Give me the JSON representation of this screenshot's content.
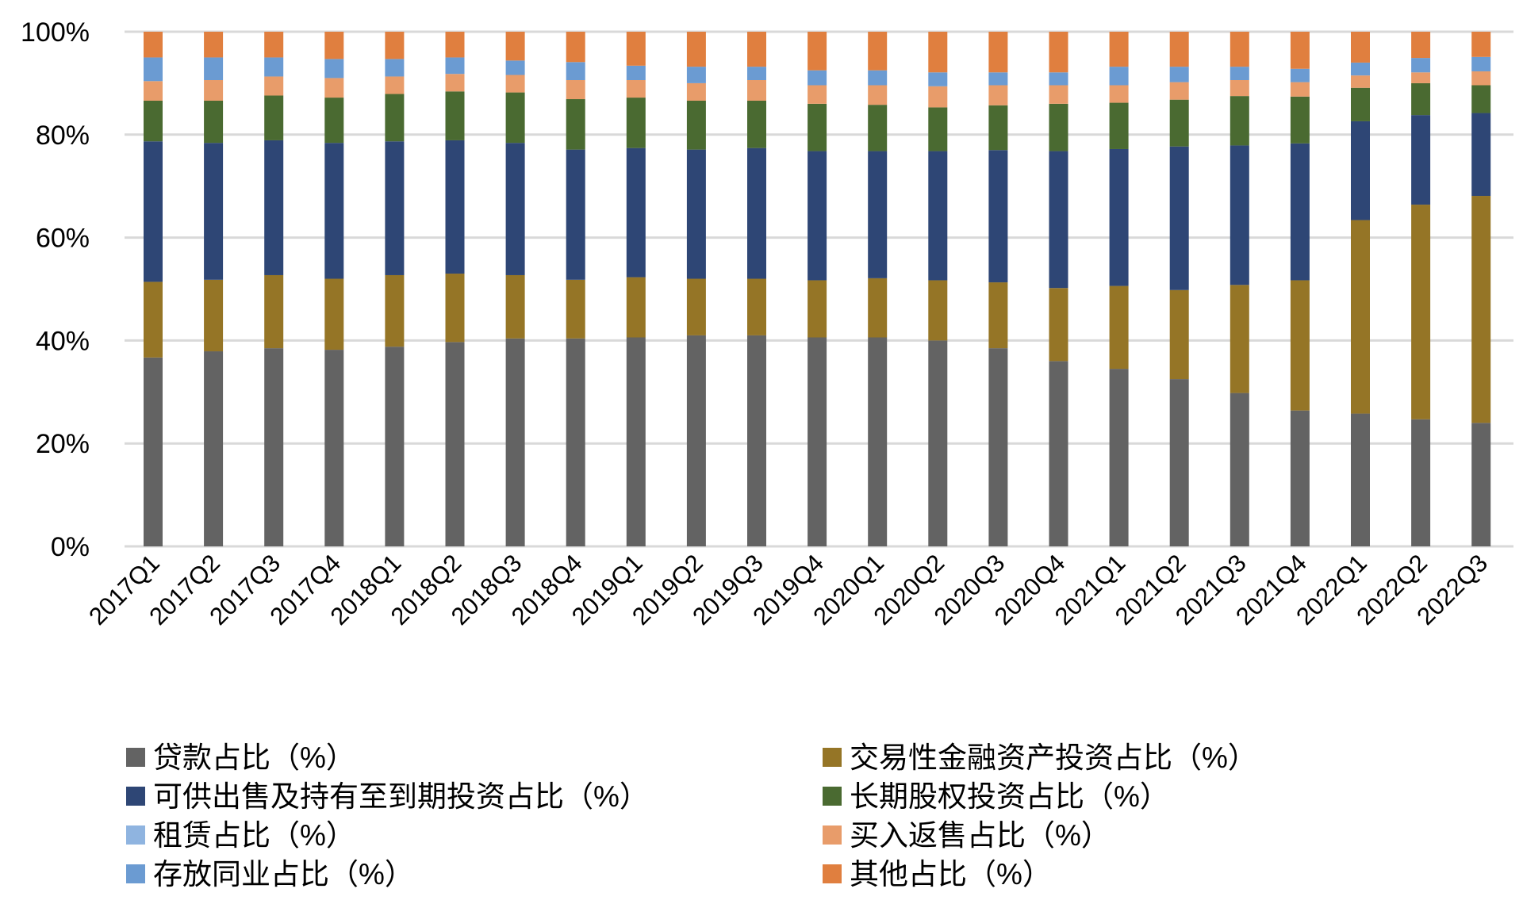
{
  "chart_data": {
    "type": "bar",
    "stacked": true,
    "percent_stacked": true,
    "title": "",
    "xlabel": "",
    "ylabel": "",
    "ylim": [
      0,
      100
    ],
    "yticks": [
      "0%",
      "20%",
      "40%",
      "60%",
      "80%",
      "100%"
    ],
    "grid": true,
    "legend_position": "bottom",
    "categories": [
      "2017Q1",
      "2017Q2",
      "2017Q3",
      "2017Q4",
      "2018Q1",
      "2018Q2",
      "2018Q3",
      "2018Q4",
      "2019Q1",
      "2019Q2",
      "2019Q3",
      "2019Q4",
      "2020Q1",
      "2020Q2",
      "2020Q3",
      "2020Q4",
      "2021Q1",
      "2021Q2",
      "2021Q3",
      "2021Q4",
      "2022Q1",
      "2022Q2",
      "2022Q3"
    ],
    "series": [
      {
        "name": "贷款占比（%）",
        "color": "#636363",
        "values": [
          36.7,
          37.9,
          38.5,
          38.2,
          38.8,
          39.7,
          40.4,
          40.4,
          40.6,
          41.0,
          41.0,
          40.6,
          40.6,
          40.0,
          38.5,
          36.0,
          34.5,
          32.5,
          29.8,
          26.4,
          25.8,
          24.7,
          24.0
        ]
      },
      {
        "name": "交易性金融资产投资占比（%）",
        "color": "#957526",
        "values": [
          14.7,
          13.9,
          14.2,
          13.8,
          13.9,
          13.3,
          12.3,
          11.4,
          11.7,
          11.0,
          11.0,
          11.1,
          11.5,
          11.7,
          12.8,
          14.2,
          16.1,
          17.3,
          21.0,
          25.3,
          37.6,
          41.7,
          44.1
        ]
      },
      {
        "name": "可供出售及持有至到期投资占比（%）",
        "color": "#2E4675",
        "values": [
          27.3,
          26.6,
          26.2,
          26.4,
          26.0,
          25.9,
          25.7,
          25.3,
          25.1,
          25.1,
          25.4,
          25.1,
          24.7,
          25.1,
          25.7,
          26.6,
          26.6,
          27.9,
          27.1,
          26.6,
          19.2,
          17.4,
          16.1
        ]
      },
      {
        "name": "长期股权投资占比（%）",
        "color": "#4A6A31",
        "values": [
          7.9,
          8.2,
          8.7,
          8.8,
          9.2,
          9.5,
          9.8,
          9.8,
          9.8,
          9.5,
          9.2,
          9.2,
          9.0,
          8.5,
          8.7,
          9.2,
          9.0,
          9.1,
          9.6,
          9.1,
          6.5,
          6.2,
          5.4
        ]
      },
      {
        "name": "租赁占比（%）",
        "color": "#8FB4E0",
        "values": [
          0,
          0,
          0,
          0,
          0,
          0,
          0,
          0,
          0,
          0,
          0,
          0,
          0,
          0,
          0,
          0,
          0,
          0,
          0,
          0,
          0,
          0,
          0
        ]
      },
      {
        "name": "买入返售占比（%）",
        "color": "#E89C6A",
        "values": [
          3.8,
          4.0,
          3.7,
          3.8,
          3.4,
          3.4,
          3.4,
          3.7,
          3.4,
          3.4,
          4.0,
          3.6,
          3.8,
          4.1,
          3.9,
          3.6,
          3.4,
          3.4,
          3.1,
          2.8,
          2.4,
          2.1,
          2.7
        ]
      },
      {
        "name": "存放同业占比（%）",
        "color": "#6B9BD2",
        "values": [
          4.6,
          4.4,
          3.7,
          3.7,
          3.4,
          3.2,
          2.8,
          3.5,
          2.8,
          3.2,
          2.6,
          2.9,
          2.9,
          2.7,
          2.5,
          2.5,
          3.6,
          3.0,
          2.6,
          2.6,
          2.5,
          2.8,
          2.8
        ]
      },
      {
        "name": "其他占比（%）",
        "color": "#E07F3F",
        "values": [
          5.0,
          5.0,
          5.0,
          5.3,
          5.3,
          5.0,
          5.6,
          5.9,
          6.6,
          6.8,
          6.8,
          7.5,
          7.5,
          7.9,
          7.9,
          7.9,
          6.8,
          6.8,
          6.8,
          7.2,
          6.0,
          5.1,
          4.9
        ]
      }
    ],
    "legend_order": [
      0,
      1,
      2,
      3,
      4,
      5,
      6,
      7
    ]
  }
}
